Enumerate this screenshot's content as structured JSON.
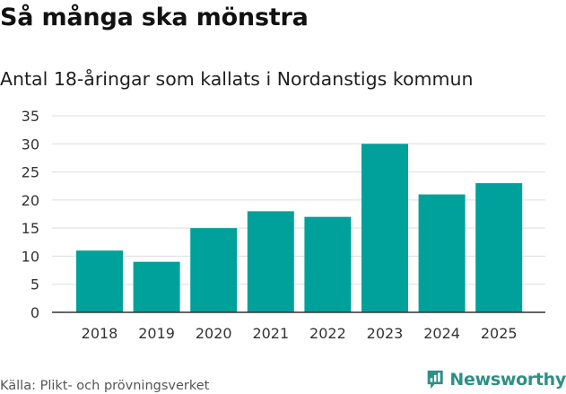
{
  "colors": {
    "bar": "#00a19a",
    "grid": "#dddddd",
    "axis": "#333333",
    "logo": "#2e8f86"
  },
  "footer": {
    "source": "Källa: Plikt- och prövningsverket",
    "brand": "Newsworthy",
    "brand_icon": "newsworthy-chart-bubble-icon"
  },
  "chart_data": {
    "type": "bar",
    "title": "Så många ska mönstra",
    "subtitle": "Antal 18-åringar som kallats i Nordanstigs kommun",
    "xlabel": "",
    "ylabel": "",
    "categories": [
      "2018",
      "2019",
      "2020",
      "2021",
      "2022",
      "2023",
      "2024",
      "2025"
    ],
    "values": [
      11,
      9,
      15,
      18,
      17,
      30,
      21,
      23
    ],
    "ylim": [
      0,
      35
    ],
    "yticks": [
      0,
      5,
      10,
      15,
      20,
      25,
      30,
      35
    ],
    "grid": true,
    "legend": "none"
  }
}
